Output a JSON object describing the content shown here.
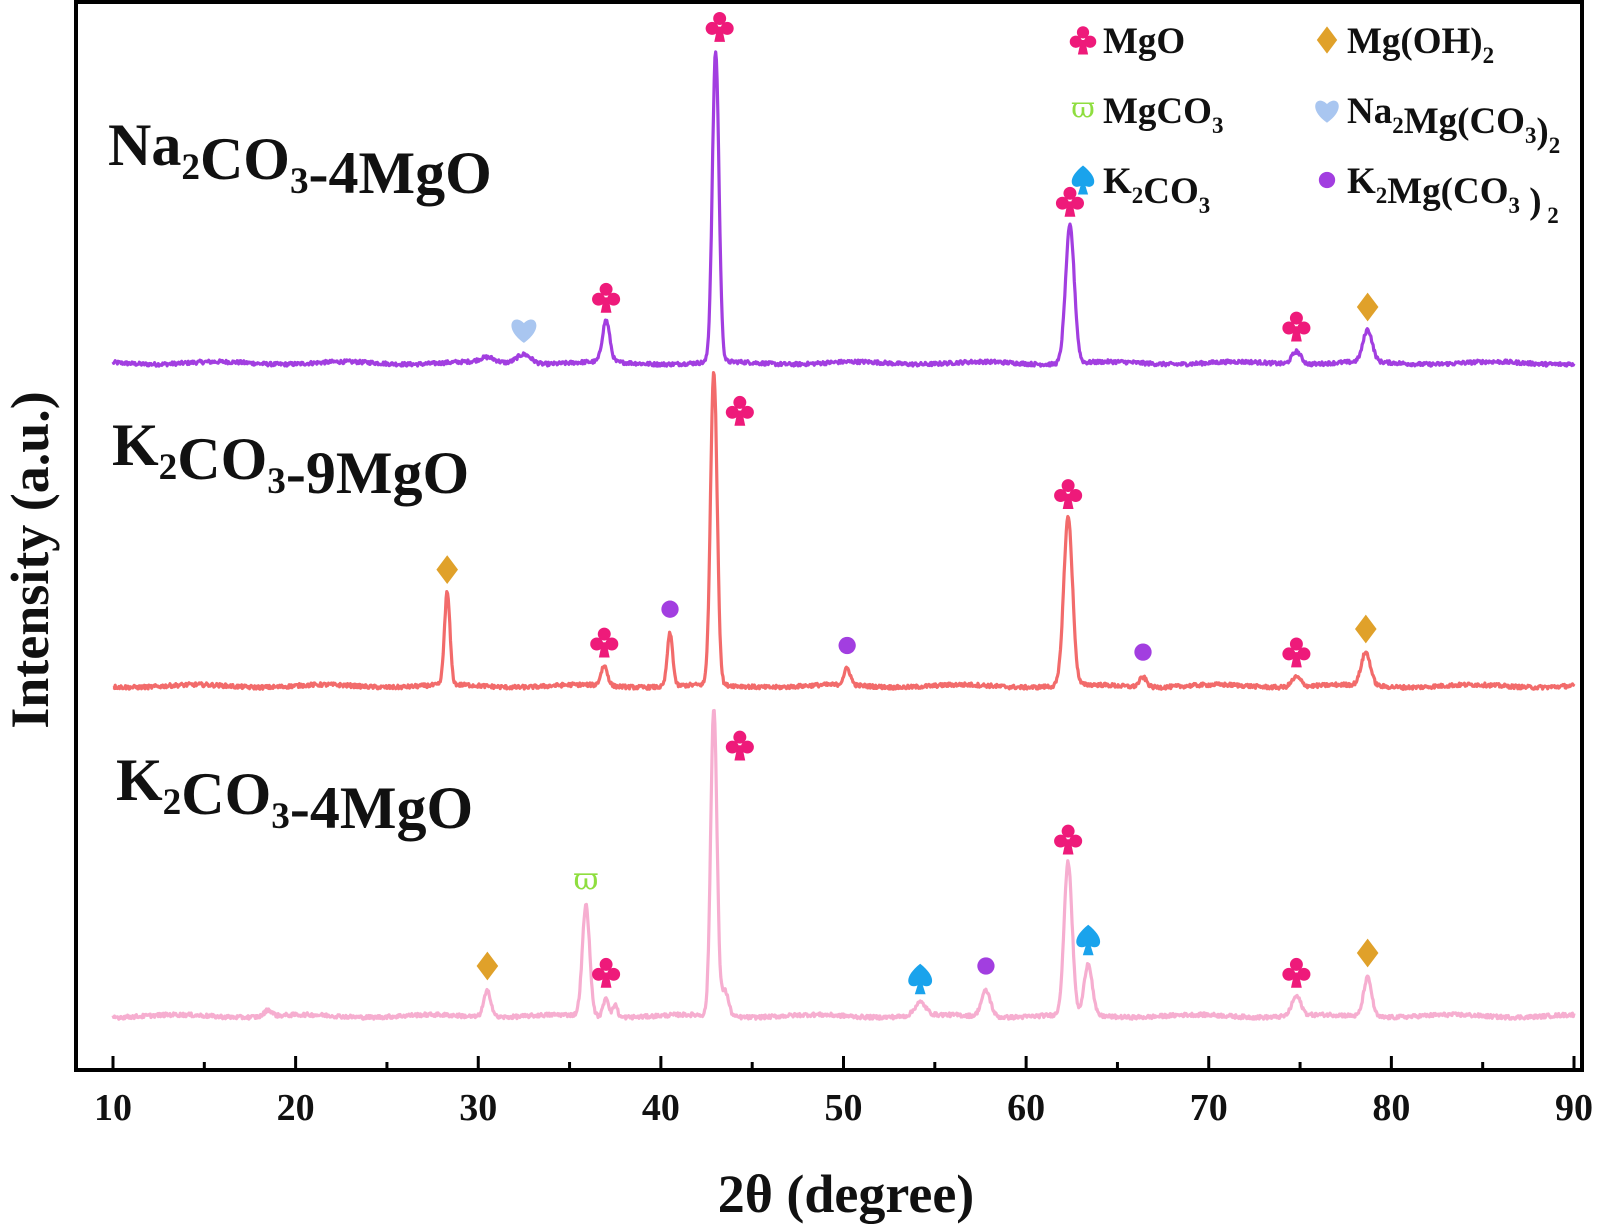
{
  "chart_data": {
    "type": "line",
    "xlabel": "2θ (degree)",
    "ylabel": "Intensity (a.u.)",
    "xlim": [
      10,
      90
    ],
    "x_ticks": [
      10,
      20,
      30,
      40,
      50,
      60,
      70,
      80,
      90
    ],
    "y_ticks_shown": false,
    "grid": false,
    "series": [
      {
        "name": "Na2CO3-4MgO",
        "label": {
          "main": "Na",
          "s1": "2",
          "m1": "CO",
          "s2": "3",
          "m2": "-4MgO"
        },
        "color": "#a23ee0",
        "baseline": 1.03,
        "peaks": [
          {
            "x": 30.5,
            "h": 0.015,
            "w": 0.4
          },
          {
            "x": 32.5,
            "h": 0.03,
            "w": 0.4
          },
          {
            "x": 37.0,
            "h": 0.13,
            "w": 0.2
          },
          {
            "x": 43.0,
            "h": 0.97,
            "w": 0.18
          },
          {
            "x": 62.4,
            "h": 0.43,
            "w": 0.24
          },
          {
            "x": 74.8,
            "h": 0.04,
            "w": 0.25
          },
          {
            "x": 78.7,
            "h": 0.1,
            "w": 0.25
          }
        ]
      },
      {
        "name": "K2CO3-9MgO",
        "label": {
          "main": "K",
          "s1": "2",
          "m1": "CO",
          "s2": "3",
          "m2": "-9MgO"
        },
        "color": "#f26b6b",
        "baseline": 0.06,
        "peaks": [
          {
            "x": 28.3,
            "h": 0.28,
            "w": 0.15
          },
          {
            "x": 36.9,
            "h": 0.06,
            "w": 0.18
          },
          {
            "x": 40.5,
            "h": 0.16,
            "w": 0.15
          },
          {
            "x": 42.9,
            "h": 0.95,
            "w": 0.18
          },
          {
            "x": 50.2,
            "h": 0.05,
            "w": 0.18
          },
          {
            "x": 62.3,
            "h": 0.51,
            "w": 0.24
          },
          {
            "x": 66.4,
            "h": 0.03,
            "w": 0.2
          },
          {
            "x": 74.8,
            "h": 0.03,
            "w": 0.25
          },
          {
            "x": 78.6,
            "h": 0.1,
            "w": 0.25
          }
        ]
      },
      {
        "name": "K2CO3-4MgO",
        "label": {
          "main": "K",
          "s1": "2",
          "m1": "CO",
          "s2": "3",
          "m2": "-4MgO"
        },
        "color": "#f6aed0",
        "baseline": -1.0,
        "peaks": [
          {
            "x": 18.5,
            "h": 0.02,
            "w": 0.2
          },
          {
            "x": 30.5,
            "h": 0.08,
            "w": 0.2
          },
          {
            "x": 35.9,
            "h": 0.34,
            "w": 0.2
          },
          {
            "x": 37.0,
            "h": 0.06,
            "w": 0.15
          },
          {
            "x": 37.5,
            "h": 0.04,
            "w": 0.12
          },
          {
            "x": 42.9,
            "h": 0.95,
            "w": 0.17
          },
          {
            "x": 43.5,
            "h": 0.08,
            "w": 0.2
          },
          {
            "x": 54.2,
            "h": 0.04,
            "w": 0.3
          },
          {
            "x": 57.8,
            "h": 0.08,
            "w": 0.25
          },
          {
            "x": 62.3,
            "h": 0.47,
            "w": 0.22
          },
          {
            "x": 63.4,
            "h": 0.16,
            "w": 0.22
          },
          {
            "x": 74.8,
            "h": 0.06,
            "w": 0.25
          },
          {
            "x": 78.7,
            "h": 0.12,
            "w": 0.22
          }
        ]
      }
    ],
    "phases": {
      "MgO": {
        "color": "#ee1a7a",
        "icon": "club-icon"
      },
      "Mg(OH)2": {
        "color": "#e0a12a",
        "icon": "diamond-icon"
      },
      "MgCO3": {
        "color": "#8fde3f",
        "icon": "varpi-icon"
      },
      "Na2Mg(CO3)2": {
        "color": "#a9c6f0",
        "icon": "heart-icon"
      },
      "K2CO3": {
        "color": "#1aa3ec",
        "icon": "spade-icon"
      },
      "K2Mg(CO3)2": {
        "color": "#a23ee0",
        "icon": "dot-icon"
      }
    },
    "annotations": [
      {
        "series": "Na2CO3-4MgO",
        "x": 32.5,
        "phase": "Na2Mg(CO3)2"
      },
      {
        "series": "Na2CO3-4MgO",
        "x": 37.0,
        "phase": "MgO"
      },
      {
        "series": "Na2CO3-4MgO",
        "x": 43.0,
        "phase": "MgO"
      },
      {
        "series": "Na2CO3-4MgO",
        "x": 62.4,
        "phase": "MgO"
      },
      {
        "series": "Na2CO3-4MgO",
        "x": 74.8,
        "phase": "MgO"
      },
      {
        "series": "Na2CO3-4MgO",
        "x": 78.7,
        "phase": "Mg(OH)2"
      },
      {
        "series": "K2CO3-9MgO",
        "x": 28.3,
        "phase": "Mg(OH)2"
      },
      {
        "series": "K2CO3-9MgO",
        "x": 36.9,
        "phase": "MgO"
      },
      {
        "series": "K2CO3-9MgO",
        "x": 40.5,
        "phase": "K2Mg(CO3)2"
      },
      {
        "series": "K2CO3-9MgO",
        "x": 42.9,
        "phase": "MgO"
      },
      {
        "series": "K2CO3-9MgO",
        "x": 50.2,
        "phase": "K2Mg(CO3)2"
      },
      {
        "series": "K2CO3-9MgO",
        "x": 62.3,
        "phase": "MgO"
      },
      {
        "series": "K2CO3-9MgO",
        "x": 66.4,
        "phase": "K2Mg(CO3)2"
      },
      {
        "series": "K2CO3-9MgO",
        "x": 74.8,
        "phase": "MgO"
      },
      {
        "series": "K2CO3-9MgO",
        "x": 78.6,
        "phase": "Mg(OH)2"
      },
      {
        "series": "K2CO3-4MgO",
        "x": 30.5,
        "phase": "Mg(OH)2"
      },
      {
        "series": "K2CO3-4MgO",
        "x": 35.9,
        "phase": "MgCO3"
      },
      {
        "series": "K2CO3-4MgO",
        "x": 37.0,
        "phase": "MgO"
      },
      {
        "series": "K2CO3-4MgO",
        "x": 42.9,
        "phase": "MgO"
      },
      {
        "series": "K2CO3-4MgO",
        "x": 54.2,
        "phase": "K2CO3"
      },
      {
        "series": "K2CO3-4MgO",
        "x": 57.8,
        "phase": "K2Mg(CO3)2"
      },
      {
        "series": "K2CO3-4MgO",
        "x": 62.3,
        "phase": "MgO"
      },
      {
        "series": "K2CO3-4MgO",
        "x": 63.4,
        "phase": "K2CO3"
      },
      {
        "series": "K2CO3-4MgO",
        "x": 74.8,
        "phase": "MgO"
      },
      {
        "series": "K2CO3-4MgO",
        "x": 78.7,
        "phase": "Mg(OH)2"
      }
    ],
    "legend": {
      "position": "top-right",
      "entries": [
        {
          "phase": "MgO",
          "label": {
            "main": "MgO"
          }
        },
        {
          "phase": "Mg(OH)2",
          "label": {
            "main": "Mg(OH)",
            "s1": "2"
          }
        },
        {
          "phase": "MgCO3",
          "label": {
            "main": "MgCO",
            "s1": "3"
          }
        },
        {
          "phase": "Na2Mg(CO3)2",
          "label": {
            "main": "Na",
            "s1": "2",
            "m1": "Mg(CO",
            "s2": "3",
            "m2": ")",
            "s3": "2"
          }
        },
        {
          "phase": "K2CO3",
          "label": {
            "main": "K",
            "s1": "2",
            "m1": "CO",
            "s2": "3"
          }
        },
        {
          "phase": "K2Mg(CO3)2",
          "label": {
            "main": "K",
            "s1": "2",
            "m1": "Mg(CO",
            "s2": "3",
            "m2": " )",
            "s3": " 2"
          }
        }
      ]
    }
  }
}
